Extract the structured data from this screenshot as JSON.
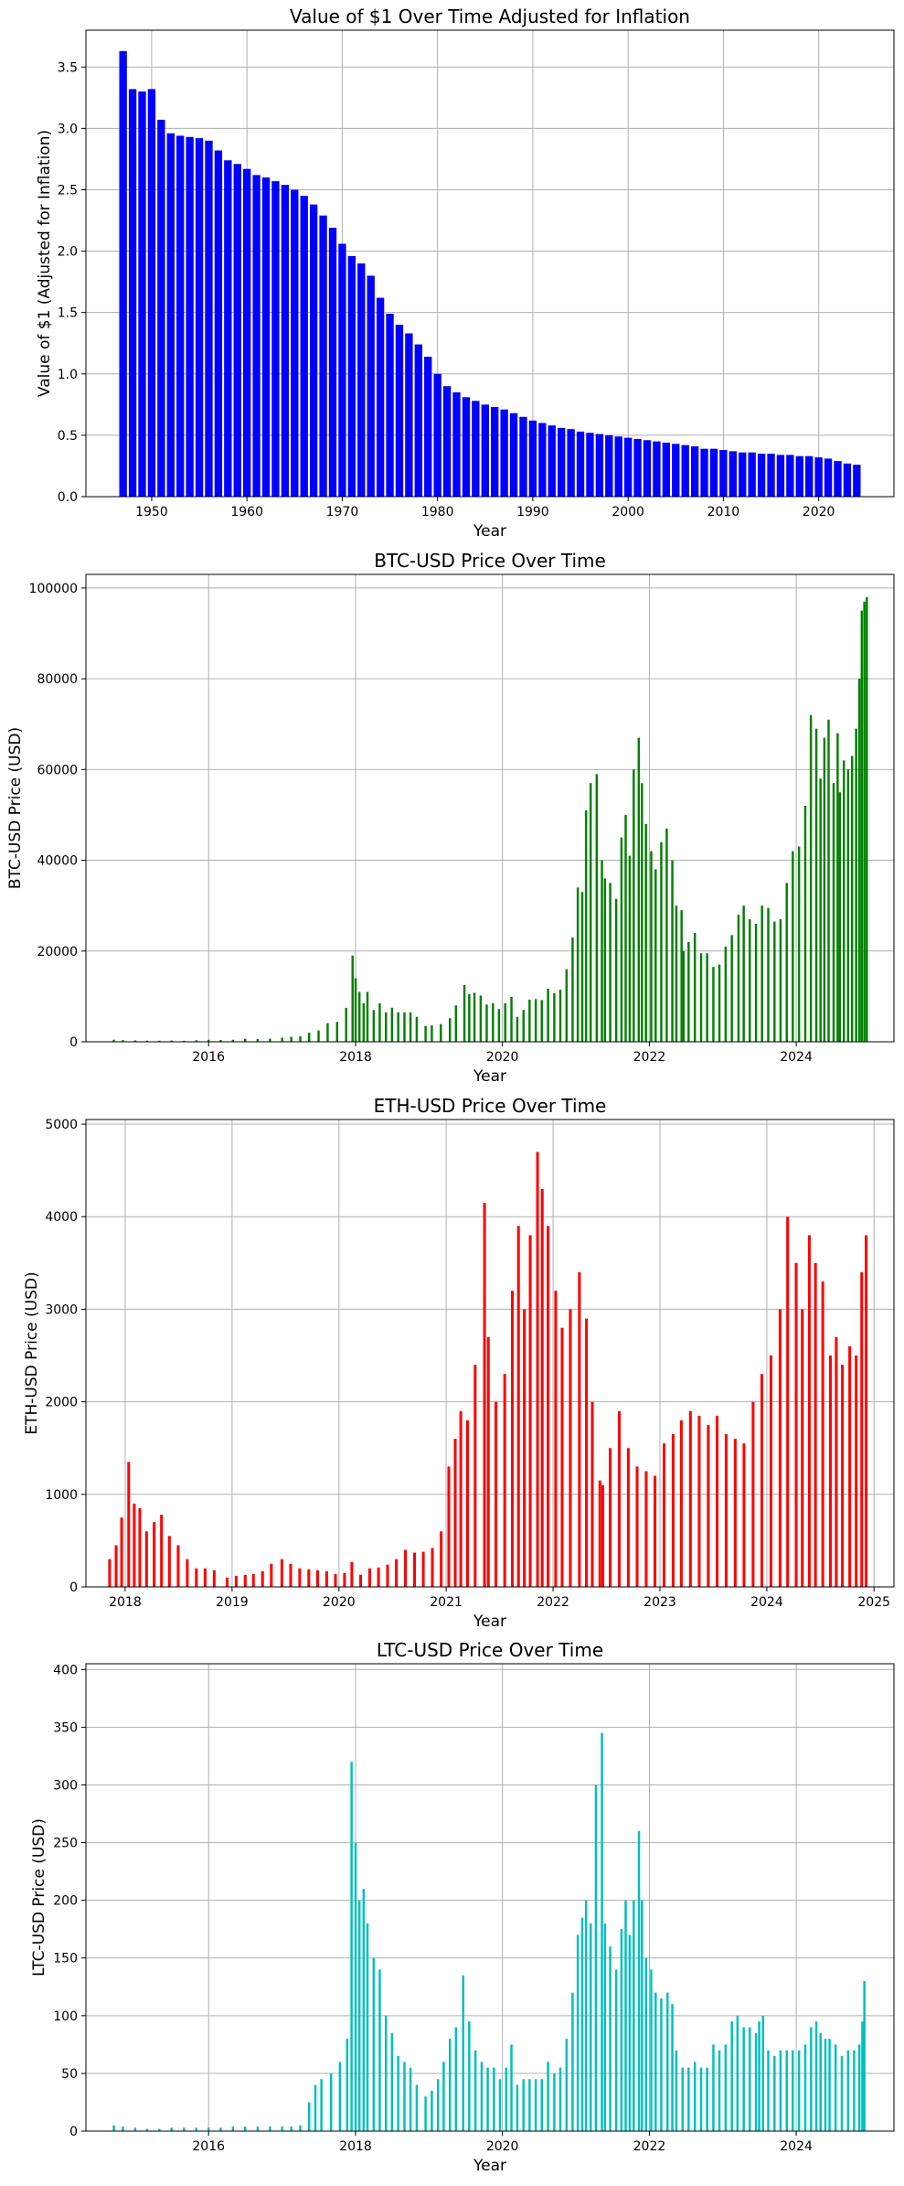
{
  "chart_data": [
    {
      "type": "bar",
      "title": "Value of $1 Over Time Adjusted for Inflation",
      "xlabel": "Year",
      "ylabel": "Value of $1 (Adjusted for Inflation)",
      "color": "#0000ff",
      "grid": true,
      "xlim": [
        1943.1,
        2027.9
      ],
      "ylim": [
        0,
        3.8
      ],
      "xticks": [
        1950,
        1960,
        1970,
        1980,
        1990,
        2000,
        2010,
        2020
      ],
      "yticks": [
        0.0,
        0.5,
        1.0,
        1.5,
        2.0,
        2.5,
        3.0,
        3.5
      ],
      "ytick_labels": [
        "0.0",
        "0.5",
        "1.0",
        "1.5",
        "2.0",
        "2.5",
        "3.0",
        "3.5"
      ],
      "categories": [
        1947,
        1948,
        1949,
        1950,
        1951,
        1952,
        1953,
        1954,
        1955,
        1956,
        1957,
        1958,
        1959,
        1960,
        1961,
        1962,
        1963,
        1964,
        1965,
        1966,
        1967,
        1968,
        1969,
        1970,
        1971,
        1972,
        1973,
        1974,
        1975,
        1976,
        1977,
        1978,
        1979,
        1980,
        1981,
        1982,
        1983,
        1984,
        1985,
        1986,
        1987,
        1988,
        1989,
        1990,
        1991,
        1992,
        1993,
        1994,
        1995,
        1996,
        1997,
        1998,
        1999,
        2000,
        2001,
        2002,
        2003,
        2004,
        2005,
        2006,
        2007,
        2008,
        2009,
        2010,
        2011,
        2012,
        2013,
        2014,
        2015,
        2016,
        2017,
        2018,
        2019,
        2020,
        2021,
        2022,
        2023,
        2024
      ],
      "values": [
        3.63,
        3.32,
        3.3,
        3.32,
        3.07,
        2.96,
        2.94,
        2.93,
        2.92,
        2.9,
        2.82,
        2.74,
        2.71,
        2.67,
        2.62,
        2.6,
        2.57,
        2.54,
        2.5,
        2.45,
        2.38,
        2.29,
        2.19,
        2.06,
        1.96,
        1.9,
        1.8,
        1.62,
        1.49,
        1.4,
        1.33,
        1.24,
        1.14,
        1.0,
        0.9,
        0.85,
        0.81,
        0.78,
        0.75,
        0.73,
        0.71,
        0.68,
        0.65,
        0.62,
        0.6,
        0.58,
        0.56,
        0.55,
        0.53,
        0.52,
        0.51,
        0.5,
        0.49,
        0.48,
        0.47,
        0.46,
        0.45,
        0.44,
        0.43,
        0.42,
        0.41,
        0.39,
        0.39,
        0.38,
        0.37,
        0.36,
        0.36,
        0.35,
        0.35,
        0.34,
        0.34,
        0.33,
        0.33,
        0.32,
        0.31,
        0.29,
        0.27,
        0.26
      ]
    },
    {
      "type": "bar",
      "title": "BTC-USD Price Over Time",
      "xlabel": "Year",
      "ylabel": "BTC-USD Price (USD)",
      "color": "#008000",
      "grid": true,
      "xlim": [
        "2014-05-01",
        "2025-05-01"
      ],
      "ylim": [
        0,
        103000
      ],
      "xticks": [
        "2016-01-01",
        "2018-01-01",
        "2020-01-01",
        "2022-01-01",
        "2024-01-01"
      ],
      "xtick_labels": [
        "2016",
        "2018",
        "2020",
        "2022",
        "2024"
      ],
      "yticks": [
        0,
        20000,
        40000,
        60000,
        80000,
        100000
      ],
      "ytick_labels": [
        "0",
        "20000",
        "40000",
        "60000",
        "80000",
        "100000"
      ],
      "x": [
        "2014-09-17",
        "2014-11-01",
        "2015-01-01",
        "2015-03-01",
        "2015-05-01",
        "2015-07-01",
        "2015-09-01",
        "2015-11-01",
        "2016-01-01",
        "2016-03-01",
        "2016-05-01",
        "2016-07-01",
        "2016-09-01",
        "2016-11-01",
        "2017-01-01",
        "2017-02-15",
        "2017-04-01",
        "2017-05-15",
        "2017-07-01",
        "2017-08-15",
        "2017-10-01",
        "2017-11-15",
        "2017-12-17",
        "2018-01-01",
        "2018-01-20",
        "2018-02-10",
        "2018-03-01",
        "2018-04-01",
        "2018-05-01",
        "2018-06-01",
        "2018-07-01",
        "2018-08-01",
        "2018-09-01",
        "2018-10-01",
        "2018-11-01",
        "2018-12-15",
        "2019-01-15",
        "2019-03-01",
        "2019-04-15",
        "2019-05-15",
        "2019-06-26",
        "2019-07-20",
        "2019-08-15",
        "2019-09-15",
        "2019-10-15",
        "2019-11-15",
        "2019-12-15",
        "2020-01-15",
        "2020-02-15",
        "2020-03-15",
        "2020-04-15",
        "2020-05-15",
        "2020-06-15",
        "2020-07-15",
        "2020-08-15",
        "2020-09-15",
        "2020-10-15",
        "2020-11-15",
        "2020-12-15",
        "2021-01-10",
        "2021-02-01",
        "2021-02-20",
        "2021-03-15",
        "2021-04-14",
        "2021-05-10",
        "2021-05-25",
        "2021-06-20",
        "2021-07-20",
        "2021-08-15",
        "2021-09-05",
        "2021-09-25",
        "2021-10-15",
        "2021-11-09",
        "2021-11-25",
        "2021-12-15",
        "2022-01-10",
        "2022-02-01",
        "2022-03-01",
        "2022-03-28",
        "2022-04-25",
        "2022-05-15",
        "2022-06-10",
        "2022-06-20",
        "2022-07-15",
        "2022-08-15",
        "2022-09-15",
        "2022-10-15",
        "2022-11-15",
        "2022-12-15",
        "2023-01-15",
        "2023-02-15",
        "2023-03-20",
        "2023-04-15",
        "2023-05-15",
        "2023-06-15",
        "2023-07-15",
        "2023-08-15",
        "2023-09-15",
        "2023-10-15",
        "2023-11-15",
        "2023-12-15",
        "2024-01-15",
        "2024-02-15",
        "2024-03-14",
        "2024-04-10",
        "2024-05-01",
        "2024-05-20",
        "2024-06-10",
        "2024-07-05",
        "2024-07-25",
        "2024-08-05",
        "2024-08-25",
        "2024-09-15",
        "2024-10-05",
        "2024-10-25",
        "2024-11-10",
        "2024-11-22",
        "2024-12-05",
        "2024-12-17"
      ],
      "values": [
        450,
        380,
        300,
        250,
        240,
        280,
        230,
        330,
        430,
        410,
        450,
        660,
        610,
        700,
        900,
        1100,
        1200,
        2000,
        2500,
        4100,
        4400,
        7500,
        19000,
        14000,
        11000,
        8500,
        11000,
        7000,
        8500,
        6500,
        7500,
        6500,
        6500,
        6500,
        5500,
        3500,
        3600,
        3900,
        5200,
        8000,
        12500,
        10500,
        10800,
        10200,
        8200,
        8500,
        7200,
        8500,
        9900,
        5500,
        7000,
        9300,
        9400,
        9200,
        11700,
        10700,
        11500,
        16000,
        23000,
        34000,
        33000,
        51000,
        57000,
        59000,
        40000,
        36000,
        35000,
        31500,
        45000,
        50000,
        41000,
        60000,
        67000,
        57000,
        48000,
        42000,
        38000,
        44000,
        47000,
        40000,
        30000,
        29000,
        20000,
        22000,
        24000,
        19500,
        19500,
        16500,
        17000,
        21000,
        23500,
        28000,
        30000,
        27000,
        26000,
        30000,
        29500,
        26500,
        27000,
        35000,
        42000,
        43000,
        52000,
        72000,
        69000,
        58000,
        67000,
        71000,
        57000,
        68000,
        55000,
        62000,
        60000,
        63000,
        69000,
        80000,
        95000,
        97000,
        98000
      ]
    },
    {
      "type": "bar",
      "title": "ETH-USD Price Over Time",
      "xlabel": "Year",
      "ylabel": "ETH-USD Price (USD)",
      "color": "#ff0000",
      "grid": true,
      "xlim": [
        "2017-08-20",
        "2025-03-10"
      ],
      "ylim": [
        0,
        5050
      ],
      "xticks": [
        "2018-01-01",
        "2019-01-01",
        "2020-01-01",
        "2021-01-01",
        "2022-01-01",
        "2023-01-01",
        "2024-01-01",
        "2025-01-01"
      ],
      "xtick_labels": [
        "2018",
        "2019",
        "2020",
        "2021",
        "2022",
        "2023",
        "2024",
        "2025"
      ],
      "yticks": [
        0,
        1000,
        2000,
        3000,
        4000,
        5000
      ],
      "ytick_labels": [
        "0",
        "1000",
        "2000",
        "3000",
        "4000",
        "5000"
      ],
      "x": [
        "2017-11-09",
        "2017-12-01",
        "2017-12-20",
        "2018-01-13",
        "2018-02-01",
        "2018-02-20",
        "2018-03-15",
        "2018-04-10",
        "2018-05-05",
        "2018-06-01",
        "2018-07-01",
        "2018-08-01",
        "2018-09-01",
        "2018-10-01",
        "2018-11-01",
        "2018-12-15",
        "2019-01-15",
        "2019-02-15",
        "2019-03-15",
        "2019-04-15",
        "2019-05-15",
        "2019-06-20",
        "2019-07-20",
        "2019-08-20",
        "2019-09-20",
        "2019-10-20",
        "2019-11-20",
        "2019-12-20",
        "2020-01-20",
        "2020-02-14",
        "2020-03-15",
        "2020-04-15",
        "2020-05-15",
        "2020-06-15",
        "2020-07-15",
        "2020-08-15",
        "2020-09-15",
        "2020-10-15",
        "2020-11-15",
        "2020-12-15",
        "2021-01-10",
        "2021-02-01",
        "2021-02-20",
        "2021-03-15",
        "2021-04-10",
        "2021-05-12",
        "2021-05-25",
        "2021-06-20",
        "2021-07-20",
        "2021-08-15",
        "2021-09-05",
        "2021-09-25",
        "2021-10-15",
        "2021-11-09",
        "2021-11-25",
        "2021-12-15",
        "2022-01-10",
        "2022-02-01",
        "2022-03-01",
        "2022-04-01",
        "2022-04-25",
        "2022-05-15",
        "2022-06-10",
        "2022-06-20",
        "2022-07-15",
        "2022-08-15",
        "2022-09-15",
        "2022-10-15",
        "2022-11-15",
        "2022-12-15",
        "2023-01-15",
        "2023-02-15",
        "2023-03-15",
        "2023-04-15",
        "2023-05-15",
        "2023-06-15",
        "2023-07-15",
        "2023-08-15",
        "2023-09-15",
        "2023-10-15",
        "2023-11-15",
        "2023-12-15",
        "2024-01-15",
        "2024-02-15",
        "2024-03-12",
        "2024-04-10",
        "2024-05-01",
        "2024-05-25",
        "2024-06-15",
        "2024-07-10",
        "2024-08-05",
        "2024-08-25",
        "2024-09-15",
        "2024-10-10",
        "2024-11-01",
        "2024-11-20",
        "2024-12-05"
      ],
      "values": [
        300,
        450,
        750,
        1350,
        900,
        850,
        600,
        700,
        780,
        550,
        450,
        300,
        200,
        200,
        180,
        100,
        120,
        130,
        140,
        170,
        250,
        300,
        250,
        200,
        190,
        180,
        170,
        140,
        150,
        270,
        130,
        200,
        210,
        240,
        300,
        400,
        370,
        380,
        420,
        600,
        1300,
        1600,
        1900,
        1800,
        2400,
        4150,
        2700,
        2000,
        2300,
        3200,
        3900,
        3000,
        3800,
        4700,
        4300,
        3900,
        3200,
        2800,
        3000,
        3400,
        2900,
        2000,
        1150,
        1100,
        1500,
        1900,
        1500,
        1300,
        1250,
        1200,
        1550,
        1650,
        1800,
        1900,
        1850,
        1750,
        1850,
        1650,
        1600,
        1550,
        2000,
        2300,
        2500,
        3000,
        4000,
        3500,
        3000,
        3800,
        3500,
        3300,
        2500,
        2700,
        2400,
        2600,
        2500,
        3400,
        3800
      ]
    },
    {
      "type": "bar",
      "title": "LTC-USD Price Over Time",
      "xlabel": "Year",
      "ylabel": "LTC-USD Price (USD)",
      "color": "#00bfbf",
      "grid": true,
      "xlim": [
        "2014-05-01",
        "2025-05-01"
      ],
      "ylim": [
        0,
        405
      ],
      "xticks": [
        "2016-01-01",
        "2018-01-01",
        "2020-01-01",
        "2022-01-01",
        "2024-01-01"
      ],
      "xtick_labels": [
        "2016",
        "2018",
        "2020",
        "2022",
        "2024"
      ],
      "yticks": [
        0,
        50,
        100,
        150,
        200,
        250,
        300,
        350,
        400
      ],
      "ytick_labels": [
        "0",
        "50",
        "100",
        "150",
        "200",
        "250",
        "300",
        "350",
        "400"
      ],
      "x": [
        "2014-09-17",
        "2014-11-01",
        "2015-01-01",
        "2015-03-01",
        "2015-05-01",
        "2015-07-01",
        "2015-09-01",
        "2015-11-01",
        "2016-01-01",
        "2016-03-01",
        "2016-05-01",
        "2016-07-01",
        "2016-09-01",
        "2016-11-01",
        "2017-01-01",
        "2017-02-15",
        "2017-04-01",
        "2017-05-15",
        "2017-06-15",
        "2017-07-15",
        "2017-09-01",
        "2017-10-15",
        "2017-11-20",
        "2017-12-12",
        "2018-01-01",
        "2018-01-20",
        "2018-02-10",
        "2018-03-01",
        "2018-04-01",
        "2018-05-01",
        "2018-06-01",
        "2018-07-01",
        "2018-08-01",
        "2018-09-01",
        "2018-10-01",
        "2018-11-01",
        "2018-12-15",
        "2019-01-15",
        "2019-02-15",
        "2019-03-15",
        "2019-04-15",
        "2019-05-15",
        "2019-06-20",
        "2019-07-20",
        "2019-08-20",
        "2019-09-20",
        "2019-10-20",
        "2019-11-20",
        "2019-12-20",
        "2020-01-20",
        "2020-02-15",
        "2020-03-15",
        "2020-04-15",
        "2020-05-15",
        "2020-06-15",
        "2020-07-15",
        "2020-08-15",
        "2020-09-15",
        "2020-10-15",
        "2020-11-15",
        "2020-12-15",
        "2021-01-10",
        "2021-02-01",
        "2021-02-20",
        "2021-03-15",
        "2021-04-10",
        "2021-05-10",
        "2021-05-25",
        "2021-06-20",
        "2021-07-20",
        "2021-08-15",
        "2021-09-05",
        "2021-09-25",
        "2021-10-15",
        "2021-11-10",
        "2021-11-25",
        "2021-12-15",
        "2022-01-10",
        "2022-02-01",
        "2022-03-01",
        "2022-04-01",
        "2022-04-25",
        "2022-05-15",
        "2022-06-15",
        "2022-07-15",
        "2022-08-15",
        "2022-09-15",
        "2022-10-15",
        "2022-11-15",
        "2022-12-15",
        "2023-01-15",
        "2023-02-15",
        "2023-03-15",
        "2023-04-15",
        "2023-05-15",
        "2023-06-15",
        "2023-07-01",
        "2023-07-20",
        "2023-08-15",
        "2023-09-15",
        "2023-10-15",
        "2023-11-15",
        "2023-12-15",
        "2024-01-15",
        "2024-02-15",
        "2024-03-15",
        "2024-04-10",
        "2024-05-01",
        "2024-05-25",
        "2024-06-15",
        "2024-07-15",
        "2024-08-15",
        "2024-09-15",
        "2024-10-15",
        "2024-11-10",
        "2024-11-25",
        "2024-12-05"
      ],
      "values": [
        5,
        4,
        3,
        2,
        2,
        3,
        3,
        3,
        3,
        3,
        4,
        4,
        4,
        4,
        4,
        4,
        5,
        25,
        40,
        45,
        50,
        60,
        80,
        320,
        250,
        200,
        210,
        180,
        150,
        140,
        100,
        85,
        65,
        60,
        55,
        40,
        30,
        35,
        45,
        60,
        80,
        90,
        135,
        95,
        70,
        60,
        55,
        55,
        45,
        55,
        75,
        40,
        45,
        45,
        45,
        45,
        60,
        50,
        55,
        80,
        120,
        170,
        185,
        200,
        180,
        300,
        345,
        180,
        160,
        140,
        175,
        200,
        170,
        200,
        260,
        200,
        150,
        140,
        120,
        115,
        120,
        110,
        70,
        55,
        55,
        60,
        55,
        55,
        75,
        70,
        75,
        95,
        100,
        90,
        90,
        85,
        95,
        100,
        70,
        65,
        70,
        70,
        70,
        70,
        75,
        90,
        95,
        85,
        80,
        80,
        75,
        65,
        70,
        70,
        75,
        95,
        130
      ]
    }
  ]
}
